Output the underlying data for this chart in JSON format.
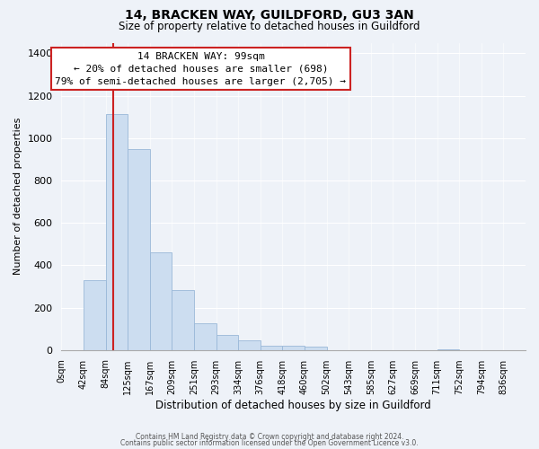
{
  "title": "14, BRACKEN WAY, GUILDFORD, GU3 3AN",
  "subtitle": "Size of property relative to detached houses in Guildford",
  "xlabel": "Distribution of detached houses by size in Guildford",
  "ylabel": "Number of detached properties",
  "bar_labels": [
    "0sqm",
    "42sqm",
    "84sqm",
    "125sqm",
    "167sqm",
    "209sqm",
    "251sqm",
    "293sqm",
    "334sqm",
    "376sqm",
    "418sqm",
    "460sqm",
    "502sqm",
    "543sqm",
    "585sqm",
    "627sqm",
    "669sqm",
    "711sqm",
    "752sqm",
    "794sqm",
    "836sqm"
  ],
  "bar_values": [
    0,
    330,
    1115,
    950,
    460,
    283,
    128,
    70,
    45,
    20,
    20,
    15,
    0,
    0,
    0,
    0,
    0,
    5,
    0,
    0,
    0
  ],
  "bar_color": "#ccddf0",
  "bar_edge_color": "#9ab8d8",
  "property_line_x": 2.36,
  "annotation_title": "14 BRACKEN WAY: 99sqm",
  "annotation_line1": "← 20% of detached houses are smaller (698)",
  "annotation_line2": "79% of semi-detached houses are larger (2,705) →",
  "annotation_box_facecolor": "#ffffff",
  "annotation_box_edgecolor": "#cc2222",
  "line_color": "#cc2222",
  "ylim": [
    0,
    1450
  ],
  "yticks": [
    0,
    200,
    400,
    600,
    800,
    1000,
    1200,
    1400
  ],
  "footer_line1": "Contains HM Land Registry data © Crown copyright and database right 2024.",
  "footer_line2": "Contains public sector information licensed under the Open Government Licence v3.0.",
  "bg_color": "#eef2f8",
  "plot_bg_color": "#eef2f8",
  "grid_color": "#ffffff",
  "title_fontsize": 10,
  "subtitle_fontsize": 8.5,
  "ylabel_fontsize": 8,
  "xlabel_fontsize": 8.5,
  "tick_fontsize": 7,
  "annotation_fontsize": 8,
  "footer_fontsize": 5.5
}
